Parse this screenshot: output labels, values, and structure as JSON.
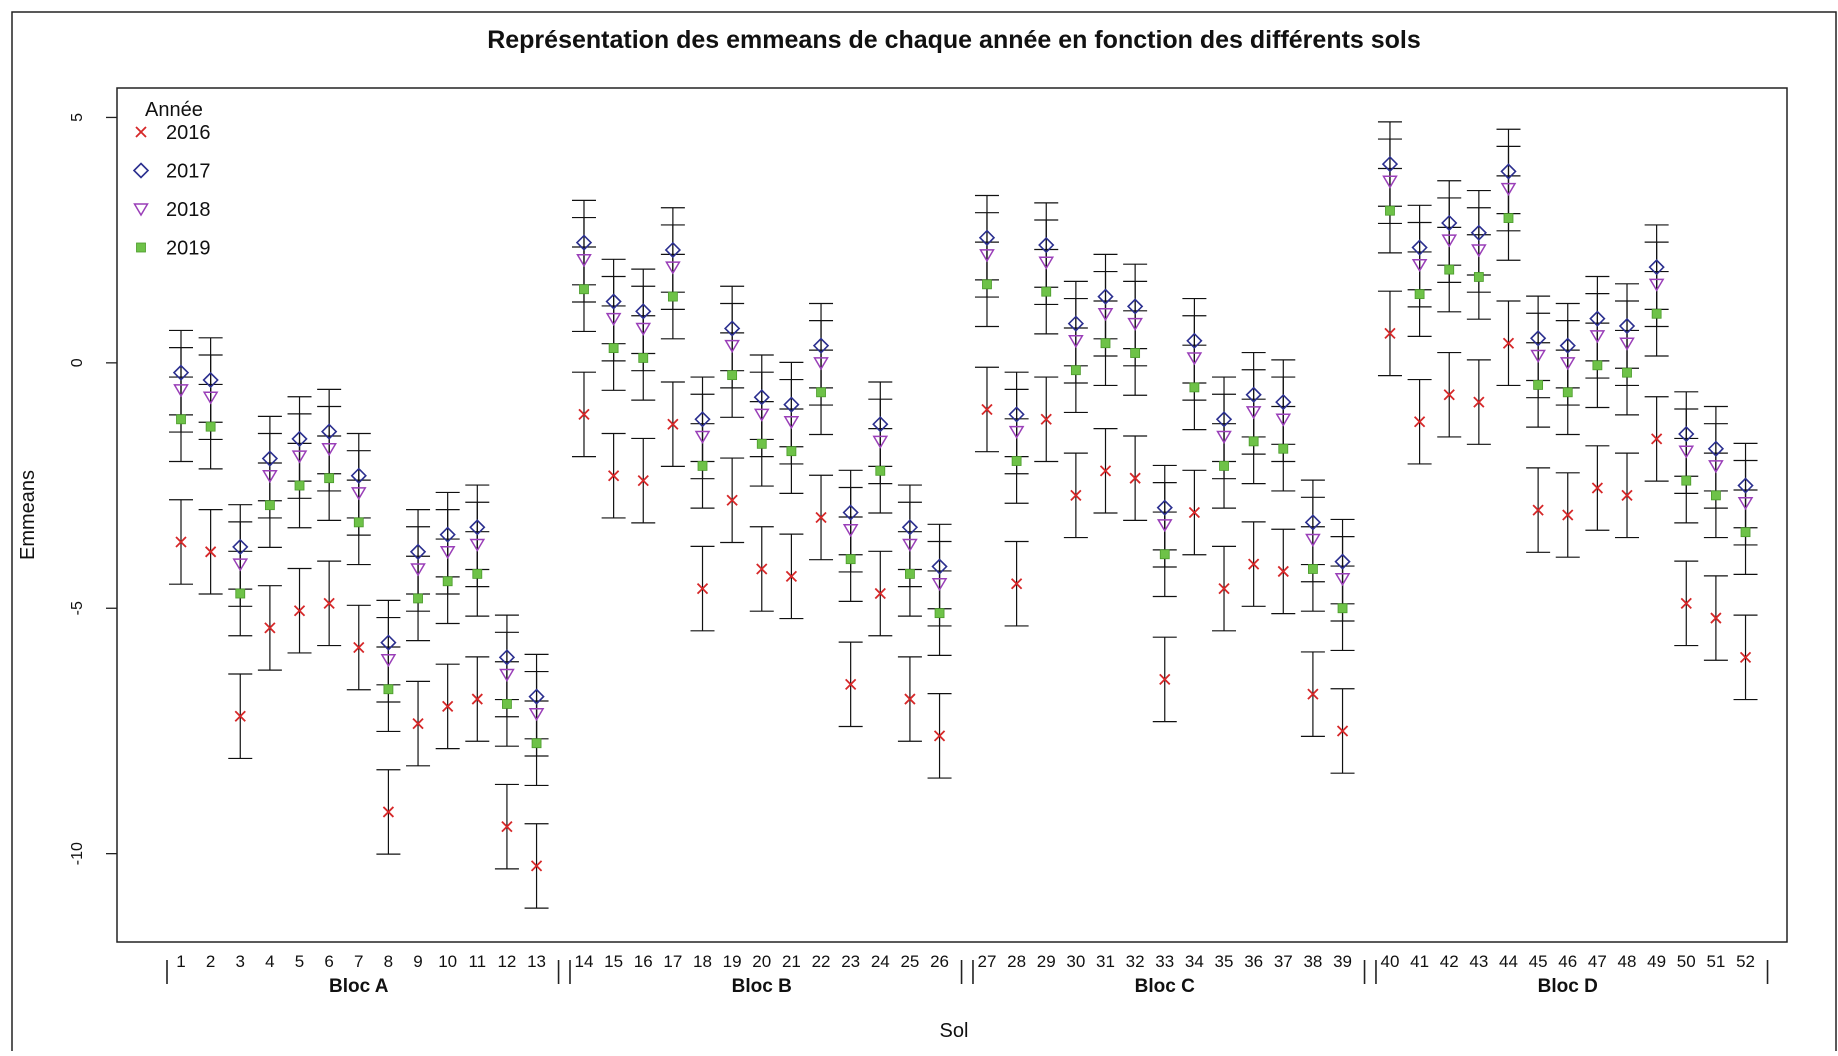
{
  "chart_data": {
    "type": "scatter",
    "title": "Représentation des emmeans de chaque année en fonction des différents sols",
    "xlabel": "Sol",
    "ylabel": "Emmeans",
    "ylim": [
      -11.8,
      5.6
    ],
    "yticks": [
      5,
      0,
      -5,
      -10
    ],
    "ytick_labels": [
      "5",
      "0",
      "-5",
      "-10"
    ],
    "legend": {
      "title": "Année",
      "position": "top-left"
    },
    "groups": [
      {
        "label": "Bloc A",
        "start": 1,
        "end": 13
      },
      {
        "label": "Bloc B",
        "start": 14,
        "end": 26
      },
      {
        "label": "Bloc C",
        "start": 27,
        "end": 39
      },
      {
        "label": "Bloc D",
        "start": 40,
        "end": 52
      }
    ],
    "categories": [
      "1",
      "2",
      "3",
      "4",
      "5",
      "6",
      "7",
      "8",
      "9",
      "10",
      "11",
      "12",
      "13",
      "14",
      "15",
      "16",
      "17",
      "18",
      "19",
      "20",
      "21",
      "22",
      "23",
      "24",
      "25",
      "26",
      "27",
      "28",
      "29",
      "30",
      "31",
      "32",
      "33",
      "34",
      "35",
      "36",
      "37",
      "38",
      "39",
      "40",
      "41",
      "42",
      "43",
      "44",
      "45",
      "46",
      "47",
      "48",
      "49",
      "50",
      "51",
      "52"
    ],
    "error_halfwidth": 0.86,
    "series": [
      {
        "name": "2016",
        "marker": "x",
        "color": "#d62728",
        "values": [
          -3.65,
          -3.85,
          -7.2,
          -5.4,
          -5.05,
          -4.9,
          -5.8,
          -9.15,
          -7.35,
          -7.0,
          -6.85,
          -9.45,
          -10.25,
          -1.05,
          -2.3,
          -2.4,
          -1.25,
          -4.6,
          -2.8,
          -4.2,
          -4.35,
          -3.15,
          -6.55,
          -4.7,
          -6.85,
          -7.6,
          -0.95,
          -4.5,
          -1.15,
          -2.7,
          -2.2,
          -2.35,
          -6.45,
          -3.05,
          -4.6,
          -4.1,
          -4.25,
          -6.75,
          -7.5,
          0.6,
          -1.2,
          -0.65,
          -0.8,
          0.4,
          -3.0,
          -3.1,
          -2.55,
          -2.7,
          -1.55,
          -4.9,
          -5.2,
          -6.0
        ]
      },
      {
        "name": "2017",
        "marker": "diamond",
        "color": "#2b2f8f",
        "values": [
          -0.2,
          -0.35,
          -3.75,
          -1.95,
          -1.55,
          -1.4,
          -2.3,
          -5.7,
          -3.85,
          -3.5,
          -3.35,
          -6.0,
          -6.8,
          2.45,
          1.25,
          1.05,
          2.3,
          -1.15,
          0.7,
          -0.7,
          -0.85,
          0.35,
          -3.05,
          -1.25,
          -3.35,
          -4.15,
          2.55,
          -1.05,
          2.4,
          0.8,
          1.35,
          1.15,
          -2.95,
          0.45,
          -1.15,
          -0.65,
          -0.8,
          -3.25,
          -4.05,
          4.05,
          2.35,
          2.85,
          2.65,
          3.9,
          0.5,
          0.35,
          0.9,
          0.75,
          1.95,
          -1.45,
          -1.75,
          -2.5
        ]
      },
      {
        "name": "2018",
        "marker": "triangle-down",
        "color": "#9a3fb8",
        "values": [
          -0.55,
          -0.7,
          -4.1,
          -2.3,
          -1.9,
          -1.75,
          -2.65,
          -6.05,
          -4.2,
          -3.85,
          -3.7,
          -6.35,
          -7.15,
          2.1,
          0.9,
          0.7,
          1.95,
          -1.5,
          0.35,
          -1.05,
          -1.2,
          0.0,
          -3.4,
          -1.6,
          -3.7,
          -4.5,
          2.2,
          -1.4,
          2.05,
          0.45,
          1.0,
          0.8,
          -3.3,
          0.1,
          -1.5,
          -1.0,
          -1.15,
          -3.6,
          -4.4,
          3.7,
          2.0,
          2.5,
          2.3,
          3.55,
          0.15,
          0.0,
          0.55,
          0.4,
          1.6,
          -1.8,
          -2.1,
          -2.85
        ]
      },
      {
        "name": "2019",
        "marker": "square",
        "color": "#6ec248",
        "values": [
          -1.15,
          -1.3,
          -4.7,
          -2.9,
          -2.5,
          -2.35,
          -3.25,
          -6.65,
          -4.8,
          -4.45,
          -4.3,
          -6.95,
          -7.75,
          1.5,
          0.3,
          0.1,
          1.35,
          -2.1,
          -0.25,
          -1.65,
          -1.8,
          -0.6,
          -4.0,
          -2.2,
          -4.3,
          -5.1,
          1.6,
          -2.0,
          1.45,
          -0.15,
          0.4,
          0.2,
          -3.9,
          -0.5,
          -2.1,
          -1.6,
          -1.75,
          -4.2,
          -5.0,
          3.1,
          1.4,
          1.9,
          1.75,
          2.95,
          -0.45,
          -0.6,
          -0.05,
          -0.2,
          1.0,
          -2.4,
          -2.7,
          -3.45
        ]
      }
    ]
  }
}
